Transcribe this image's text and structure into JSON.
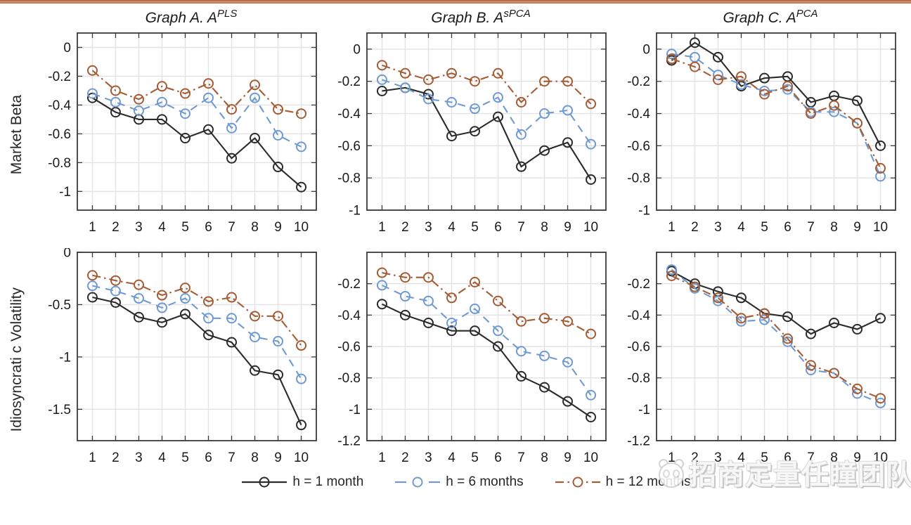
{
  "page": {
    "top_bar_color": "#c0714c",
    "background": "#ffffff"
  },
  "titles": [
    {
      "prefix": "Graph A. A",
      "sup": "PLS"
    },
    {
      "prefix": "Graph B. A",
      "sup": "sPCA"
    },
    {
      "prefix": "Graph C. A",
      "sup": "PCA"
    }
  ],
  "row_labels": [
    "Market Beta",
    "Idiosyncrati c Volatility"
  ],
  "legend": [
    {
      "label": "h = 1 month",
      "color": "#2b2b2b",
      "dash": "solid"
    },
    {
      "label": "h = 6 months",
      "color": "#6f9ad2",
      "dash": "dashed"
    },
    {
      "label": "h = 12 months",
      "color": "#a55c35",
      "dash": "dashdot"
    }
  ],
  "watermark": {
    "text": "招商定量任瞳团队"
  },
  "style": {
    "grid_color": "#e3e3e3",
    "frame_color": "#3a3a3a"
  },
  "chart_data": [
    {
      "type": "line",
      "title": "Graph A. A^PLS",
      "row_label": "Market Beta",
      "x": [
        1,
        2,
        3,
        4,
        5,
        6,
        7,
        8,
        9,
        10
      ],
      "ylim": [
        0.1,
        -1.13
      ],
      "yticks": [
        0,
        -0.2,
        -0.4,
        -0.6,
        -0.8,
        -1
      ],
      "grid": true,
      "series": [
        {
          "name": "h = 1 month",
          "values": [
            -0.35,
            -0.45,
            -0.5,
            -0.5,
            -0.63,
            -0.57,
            -0.77,
            -0.63,
            -0.83,
            -0.97
          ]
        },
        {
          "name": "h = 6 months",
          "values": [
            -0.32,
            -0.38,
            -0.44,
            -0.38,
            -0.46,
            -0.35,
            -0.56,
            -0.35,
            -0.61,
            -0.69
          ]
        },
        {
          "name": "h = 12 months",
          "values": [
            -0.16,
            -0.3,
            -0.36,
            -0.27,
            -0.32,
            -0.25,
            -0.43,
            -0.26,
            -0.43,
            -0.46
          ]
        }
      ]
    },
    {
      "type": "line",
      "title": "Graph B. A^sPCA",
      "row_label": "Market Beta",
      "x": [
        1,
        2,
        3,
        4,
        5,
        6,
        7,
        8,
        9,
        10
      ],
      "ylim": [
        0.1,
        -1.0
      ],
      "yticks": [
        0,
        -0.2,
        -0.4,
        -0.6,
        -0.8,
        -1
      ],
      "grid": true,
      "series": [
        {
          "name": "h = 1 month",
          "values": [
            -0.26,
            -0.24,
            -0.28,
            -0.54,
            -0.51,
            -0.42,
            -0.73,
            -0.63,
            -0.58,
            -0.81
          ]
        },
        {
          "name": "h = 6 months",
          "values": [
            -0.19,
            -0.24,
            -0.31,
            -0.33,
            -0.37,
            -0.3,
            -0.53,
            -0.4,
            -0.38,
            -0.59
          ]
        },
        {
          "name": "h = 12 months",
          "values": [
            -0.1,
            -0.15,
            -0.19,
            -0.15,
            -0.2,
            -0.15,
            -0.33,
            -0.2,
            -0.2,
            -0.34
          ]
        }
      ]
    },
    {
      "type": "line",
      "title": "Graph C. A^PCA",
      "row_label": "Market Beta",
      "x": [
        1,
        2,
        3,
        4,
        5,
        6,
        7,
        8,
        9,
        10
      ],
      "ylim": [
        0.1,
        -1.0
      ],
      "yticks": [
        0,
        -0.2,
        -0.4,
        -0.6,
        -0.8,
        -1
      ],
      "grid": true,
      "series": [
        {
          "name": "h = 1 month",
          "values": [
            -0.07,
            0.04,
            -0.05,
            -0.23,
            -0.18,
            -0.17,
            -0.33,
            -0.29,
            -0.32,
            -0.6
          ]
        },
        {
          "name": "h = 6 months",
          "values": [
            -0.03,
            -0.05,
            -0.16,
            -0.22,
            -0.26,
            -0.25,
            -0.39,
            -0.39,
            -0.46,
            -0.79
          ]
        },
        {
          "name": "h = 12 months",
          "values": [
            -0.06,
            -0.11,
            -0.19,
            -0.17,
            -0.28,
            -0.23,
            -0.4,
            -0.35,
            -0.46,
            -0.74
          ]
        }
      ]
    },
    {
      "type": "line",
      "title": "Graph A. A^PLS",
      "row_label": "Idiosyncrati c Volatility",
      "x": [
        1,
        2,
        3,
        4,
        5,
        6,
        7,
        8,
        9,
        10
      ],
      "ylim": [
        0,
        -1.8
      ],
      "yticks": [
        0,
        -0.5,
        -1,
        -1.5
      ],
      "grid": true,
      "series": [
        {
          "name": "h = 1 month",
          "values": [
            -0.43,
            -0.48,
            -0.62,
            -0.67,
            -0.59,
            -0.79,
            -0.86,
            -1.13,
            -1.17,
            -1.65
          ]
        },
        {
          "name": "h = 6 months",
          "values": [
            -0.32,
            -0.37,
            -0.44,
            -0.53,
            -0.44,
            -0.63,
            -0.63,
            -0.81,
            -0.85,
            -1.21
          ]
        },
        {
          "name": "h = 12 months",
          "values": [
            -0.22,
            -0.27,
            -0.31,
            -0.41,
            -0.34,
            -0.47,
            -0.43,
            -0.61,
            -0.61,
            -0.89
          ]
        }
      ]
    },
    {
      "type": "line",
      "title": "Graph B. A^sPCA",
      "row_label": "Idiosyncrati c Volatility",
      "x": [
        1,
        2,
        3,
        4,
        5,
        6,
        7,
        8,
        9,
        10
      ],
      "ylim": [
        0,
        -1.2
      ],
      "yticks": [
        -0.2,
        -0.4,
        -0.6,
        -0.8,
        -1,
        -1.2
      ],
      "grid": true,
      "series": [
        {
          "name": "h = 1 month",
          "values": [
            -0.33,
            -0.4,
            -0.45,
            -0.5,
            -0.5,
            -0.6,
            -0.79,
            -0.86,
            -0.95,
            -1.05
          ]
        },
        {
          "name": "h = 6 months",
          "values": [
            -0.21,
            -0.28,
            -0.31,
            -0.45,
            -0.36,
            -0.5,
            -0.63,
            -0.66,
            -0.7,
            -0.91
          ]
        },
        {
          "name": "h = 12 months",
          "values": [
            -0.13,
            -0.16,
            -0.16,
            -0.29,
            -0.19,
            -0.31,
            -0.44,
            -0.42,
            -0.44,
            -0.52
          ]
        }
      ]
    },
    {
      "type": "line",
      "title": "Graph C. A^PCA",
      "row_label": "Idiosyncrati c Volatility",
      "x": [
        1,
        2,
        3,
        4,
        5,
        6,
        7,
        8,
        9,
        10
      ],
      "ylim": [
        0,
        -1.2
      ],
      "yticks": [
        -0.2,
        -0.4,
        -0.6,
        -0.8,
        -1,
        -1.2
      ],
      "grid": true,
      "series": [
        {
          "name": "h = 1 month",
          "values": [
            -0.12,
            -0.2,
            -0.25,
            -0.29,
            -0.39,
            -0.41,
            -0.52,
            -0.45,
            -0.49,
            -0.42
          ]
        },
        {
          "name": "h = 6 months",
          "values": [
            -0.11,
            -0.23,
            -0.31,
            -0.44,
            -0.43,
            -0.57,
            -0.75,
            -0.77,
            -0.9,
            -0.96
          ]
        },
        {
          "name": "h = 12 months",
          "values": [
            -0.15,
            -0.22,
            -0.29,
            -0.42,
            -0.39,
            -0.55,
            -0.72,
            -0.77,
            -0.87,
            -0.93
          ]
        }
      ]
    }
  ]
}
